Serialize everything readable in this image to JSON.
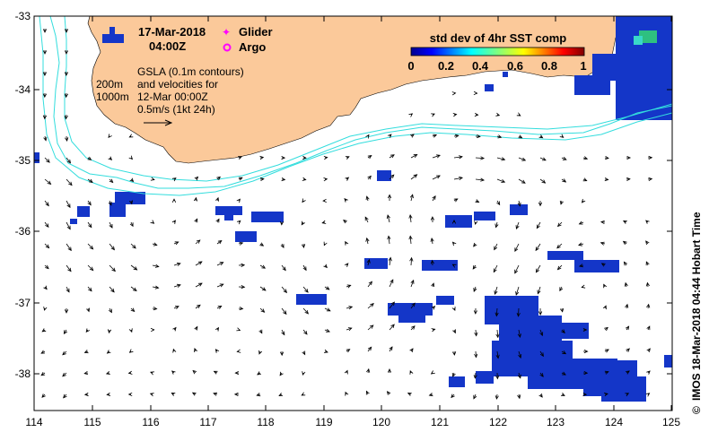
{
  "header": {
    "date": "17-Mar-2018",
    "time": "04:00Z"
  },
  "legend": {
    "glider": "Glider",
    "argo": "Argo",
    "glider_color": "#ff00ff",
    "argo_color": "#ff00ff"
  },
  "notes": {
    "gsla_line1": "GSLA (0.1m contours)",
    "gsla_line2": "and velocities for",
    "gsla_line3": "12-Mar 00:00Z",
    "scale_label": "0.5m/s (1kt 24h)",
    "depth1": "200m",
    "depth2": "1000m"
  },
  "colorbar": {
    "title": "std dev of 4hr SST comp",
    "ticks": [
      "0",
      "0.2",
      "0.4",
      "0.6",
      "0.8",
      "1"
    ]
  },
  "axes": {
    "x_ticks": [
      "114",
      "115",
      "116",
      "117",
      "118",
      "119",
      "120",
      "121",
      "122",
      "123",
      "124",
      "125"
    ],
    "y_ticks": [
      "-33",
      "-34",
      "-35",
      "-36",
      "-37",
      "-38"
    ],
    "x_range": [
      114,
      125
    ],
    "y_range": [
      -38.5,
      -33
    ]
  },
  "credit": "IMOS 18-Mar-2018 04:44 Hobart Time",
  "colors": {
    "land": "#fbc99a",
    "contour": "#33dddd",
    "sst": "#1436c8",
    "arrow": "#000000"
  }
}
